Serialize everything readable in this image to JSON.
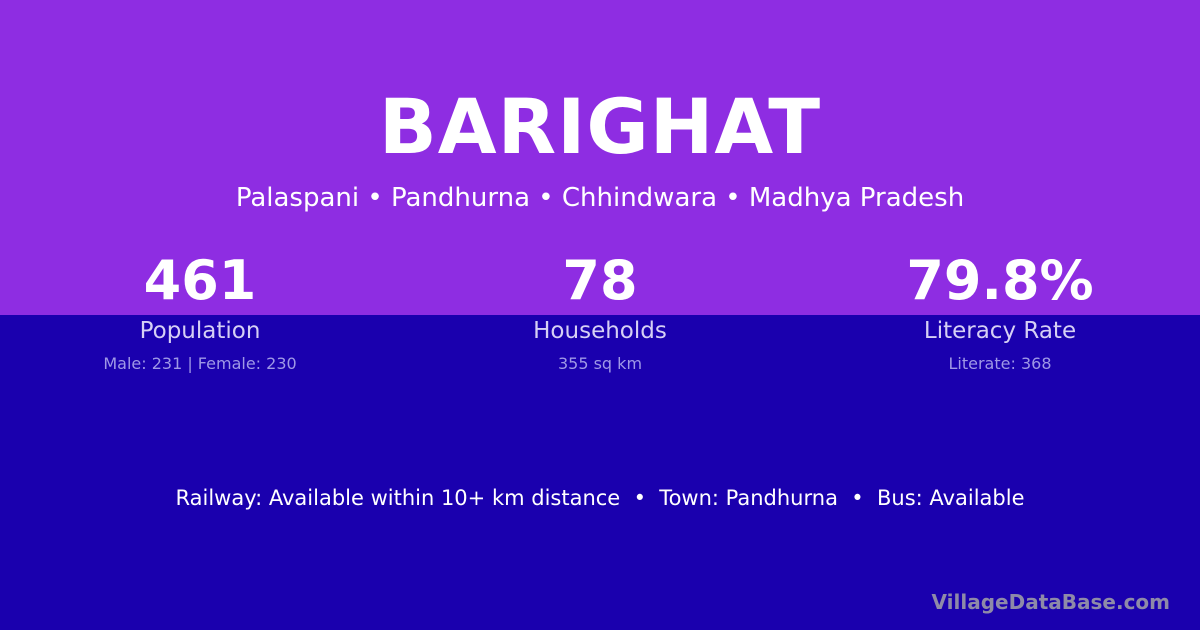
{
  "village": "BARIGHAT",
  "location": "Palaspani • Pandhurna • Chhindwara • Madhya Pradesh",
  "stats": [
    {
      "value": "461",
      "label": "Population",
      "sub": "Male: 231 | Female: 230"
    },
    {
      "value": "78",
      "label": "Households",
      "sub": "355 sq km"
    },
    {
      "value": "79.8%",
      "label": "Literacy Rate",
      "sub": "Literate: 368"
    }
  ],
  "facts": "Railway: Available within 10+ km distance  •  Town: Pandhurna  •  Bus: Available",
  "brand": "VillageDataBase.com",
  "colors": {
    "top": "#8e2de2",
    "bottom": "#1a00ae"
  }
}
